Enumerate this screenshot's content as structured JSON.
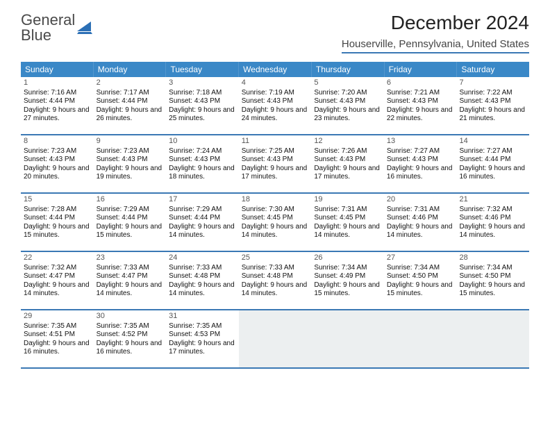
{
  "brand": {
    "line1": "General",
    "line2": "Blue"
  },
  "title": "December 2024",
  "location": "Houserville, Pennsylvania, United States",
  "colors": {
    "header_bg": "#3a88c7",
    "rule": "#3a78b4",
    "empty_bg": "#eceff0",
    "text": "#111111"
  },
  "weekdays": [
    "Sunday",
    "Monday",
    "Tuesday",
    "Wednesday",
    "Thursday",
    "Friday",
    "Saturday"
  ],
  "weeks": [
    [
      {
        "n": "1",
        "sr": "7:16 AM",
        "ss": "4:44 PM",
        "dl": "9 hours and 27 minutes."
      },
      {
        "n": "2",
        "sr": "7:17 AM",
        "ss": "4:44 PM",
        "dl": "9 hours and 26 minutes."
      },
      {
        "n": "3",
        "sr": "7:18 AM",
        "ss": "4:43 PM",
        "dl": "9 hours and 25 minutes."
      },
      {
        "n": "4",
        "sr": "7:19 AM",
        "ss": "4:43 PM",
        "dl": "9 hours and 24 minutes."
      },
      {
        "n": "5",
        "sr": "7:20 AM",
        "ss": "4:43 PM",
        "dl": "9 hours and 23 minutes."
      },
      {
        "n": "6",
        "sr": "7:21 AM",
        "ss": "4:43 PM",
        "dl": "9 hours and 22 minutes."
      },
      {
        "n": "7",
        "sr": "7:22 AM",
        "ss": "4:43 PM",
        "dl": "9 hours and 21 minutes."
      }
    ],
    [
      {
        "n": "8",
        "sr": "7:23 AM",
        "ss": "4:43 PM",
        "dl": "9 hours and 20 minutes."
      },
      {
        "n": "9",
        "sr": "7:23 AM",
        "ss": "4:43 PM",
        "dl": "9 hours and 19 minutes."
      },
      {
        "n": "10",
        "sr": "7:24 AM",
        "ss": "4:43 PM",
        "dl": "9 hours and 18 minutes."
      },
      {
        "n": "11",
        "sr": "7:25 AM",
        "ss": "4:43 PM",
        "dl": "9 hours and 17 minutes."
      },
      {
        "n": "12",
        "sr": "7:26 AM",
        "ss": "4:43 PM",
        "dl": "9 hours and 17 minutes."
      },
      {
        "n": "13",
        "sr": "7:27 AM",
        "ss": "4:43 PM",
        "dl": "9 hours and 16 minutes."
      },
      {
        "n": "14",
        "sr": "7:27 AM",
        "ss": "4:44 PM",
        "dl": "9 hours and 16 minutes."
      }
    ],
    [
      {
        "n": "15",
        "sr": "7:28 AM",
        "ss": "4:44 PM",
        "dl": "9 hours and 15 minutes."
      },
      {
        "n": "16",
        "sr": "7:29 AM",
        "ss": "4:44 PM",
        "dl": "9 hours and 15 minutes."
      },
      {
        "n": "17",
        "sr": "7:29 AM",
        "ss": "4:44 PM",
        "dl": "9 hours and 14 minutes."
      },
      {
        "n": "18",
        "sr": "7:30 AM",
        "ss": "4:45 PM",
        "dl": "9 hours and 14 minutes."
      },
      {
        "n": "19",
        "sr": "7:31 AM",
        "ss": "4:45 PM",
        "dl": "9 hours and 14 minutes."
      },
      {
        "n": "20",
        "sr": "7:31 AM",
        "ss": "4:46 PM",
        "dl": "9 hours and 14 minutes."
      },
      {
        "n": "21",
        "sr": "7:32 AM",
        "ss": "4:46 PM",
        "dl": "9 hours and 14 minutes."
      }
    ],
    [
      {
        "n": "22",
        "sr": "7:32 AM",
        "ss": "4:47 PM",
        "dl": "9 hours and 14 minutes."
      },
      {
        "n": "23",
        "sr": "7:33 AM",
        "ss": "4:47 PM",
        "dl": "9 hours and 14 minutes."
      },
      {
        "n": "24",
        "sr": "7:33 AM",
        "ss": "4:48 PM",
        "dl": "9 hours and 14 minutes."
      },
      {
        "n": "25",
        "sr": "7:33 AM",
        "ss": "4:48 PM",
        "dl": "9 hours and 14 minutes."
      },
      {
        "n": "26",
        "sr": "7:34 AM",
        "ss": "4:49 PM",
        "dl": "9 hours and 15 minutes."
      },
      {
        "n": "27",
        "sr": "7:34 AM",
        "ss": "4:50 PM",
        "dl": "9 hours and 15 minutes."
      },
      {
        "n": "28",
        "sr": "7:34 AM",
        "ss": "4:50 PM",
        "dl": "9 hours and 15 minutes."
      }
    ],
    [
      {
        "n": "29",
        "sr": "7:35 AM",
        "ss": "4:51 PM",
        "dl": "9 hours and 16 minutes."
      },
      {
        "n": "30",
        "sr": "7:35 AM",
        "ss": "4:52 PM",
        "dl": "9 hours and 16 minutes."
      },
      {
        "n": "31",
        "sr": "7:35 AM",
        "ss": "4:53 PM",
        "dl": "9 hours and 17 minutes."
      },
      null,
      null,
      null,
      null
    ]
  ],
  "labels": {
    "sunrise": "Sunrise:",
    "sunset": "Sunset:",
    "daylight": "Daylight:"
  }
}
